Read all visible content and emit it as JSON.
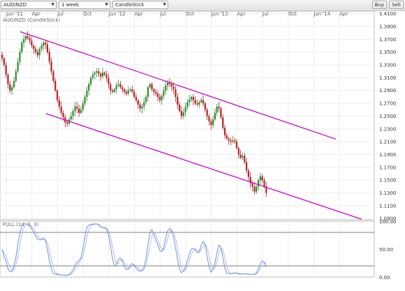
{
  "toolbar": {
    "symbol": "AUD/NZD",
    "interval": "1 week",
    "chart_style": "CandleStick",
    "buy_label": "Buy",
    "sell_label": "Sell"
  },
  "chart_data": [
    {
      "type": "candlestick",
      "legend": "AUD/NZD (CandleStick)",
      "time_axis": [
        "Jan '11",
        "Apr",
        "Jul",
        "Oct",
        "Jan '12",
        "Apr",
        "Jul",
        "Oct",
        "Jan '13",
        "Apr",
        "Jul",
        "Oct",
        "Jan '14",
        "Apr"
      ],
      "y_ticks": [
        "1.4100",
        "1.3900",
        "1.3700",
        "1.3500",
        "1.3300",
        "1.3100",
        "1.2900",
        "1.2700",
        "1.2500",
        "1.2300",
        "1.2100",
        "1.1900",
        "1.1700",
        "1.1500",
        "1.1300",
        "1.1100",
        "1.0900"
      ],
      "ylim": [
        1.088,
        1.414
      ],
      "grid": true,
      "legend_position": "top-left",
      "colors": {
        "up": "#2e8b2e",
        "down": "#b22222",
        "channel": "#cc00cc"
      },
      "series": [
        {
          "name": "AUD/NZD",
          "closes": [
            1.34,
            1.33,
            1.315,
            1.3,
            1.29,
            1.295,
            1.305,
            1.32,
            1.335,
            1.35,
            1.365,
            1.37,
            1.375,
            1.372,
            1.368,
            1.36,
            1.355,
            1.35,
            1.345,
            1.355,
            1.36,
            1.365,
            1.362,
            1.35,
            1.335,
            1.32,
            1.305,
            1.29,
            1.275,
            1.265,
            1.255,
            1.248,
            1.24,
            1.238,
            1.245,
            1.25,
            1.258,
            1.265,
            1.262,
            1.255,
            1.26,
            1.27,
            1.28,
            1.29,
            1.3,
            1.31,
            1.315,
            1.318,
            1.32,
            1.316,
            1.312,
            1.318,
            1.315,
            1.31,
            1.3,
            1.29,
            1.288,
            1.292,
            1.298,
            1.3,
            1.295,
            1.292,
            1.288,
            1.285,
            1.29,
            1.292,
            1.288,
            1.28,
            1.275,
            1.268,
            1.262,
            1.265,
            1.272,
            1.28,
            1.295,
            1.3,
            1.292,
            1.288,
            1.285,
            1.28,
            1.275,
            1.282,
            1.29,
            1.298,
            1.302,
            1.3,
            1.296,
            1.292,
            1.28,
            1.268,
            1.258,
            1.25,
            1.256,
            1.264,
            1.272,
            1.276,
            1.28,
            1.275,
            1.27,
            1.268,
            1.272,
            1.275,
            1.27,
            1.26,
            1.25,
            1.242,
            1.236,
            1.245,
            1.255,
            1.265,
            1.262,
            1.248,
            1.232,
            1.22,
            1.215,
            1.212,
            1.21,
            1.212,
            1.21,
            1.2,
            1.19,
            1.185,
            1.188,
            1.178,
            1.165,
            1.155,
            1.145,
            1.14,
            1.132,
            1.14,
            1.15,
            1.156,
            1.15,
            1.14,
            1.13
          ]
        }
      ],
      "channel_lines": [
        {
          "from": [
            "Jan '11",
            1.382
          ],
          "to": [
            "Apr '14",
            1.214
          ]
        },
        {
          "from": [
            "Apr '11",
            1.254
          ],
          "to": [
            "Jul '14",
            1.089
          ]
        }
      ]
    },
    {
      "type": "line",
      "legend": "FULL (14, 3, 3)",
      "y_ticks": [
        "100.00",
        "50.00",
        "0.00"
      ],
      "ylim": [
        0,
        100
      ],
      "reference_lines": [
        80,
        20
      ],
      "colors": {
        "k": "#6f8fd8",
        "d": "#aabde8"
      }
    }
  ]
}
